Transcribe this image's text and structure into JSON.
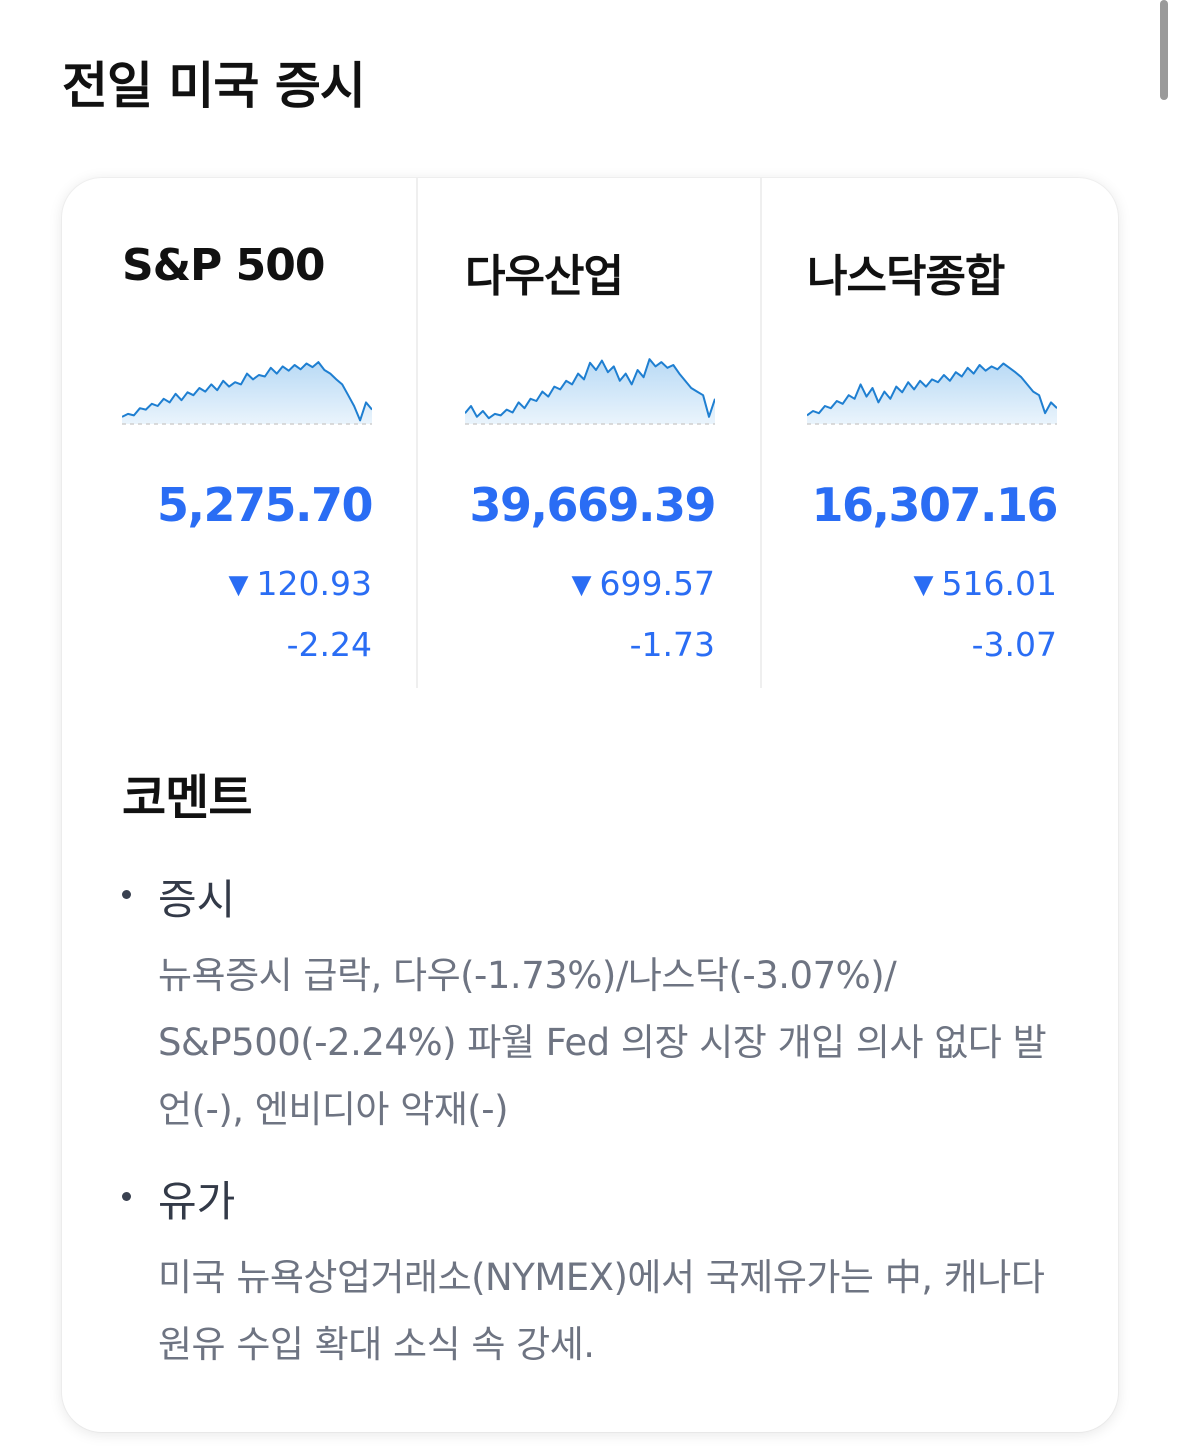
{
  "page": {
    "title": "전일 미국 증시"
  },
  "indices": [
    {
      "name": "S&P 500",
      "value": "5,275.70",
      "change": "120.93",
      "change_direction": "down",
      "change_arrow": "▼",
      "rate": "-2.24",
      "sparkline": [
        0.1,
        0.14,
        0.12,
        0.22,
        0.2,
        0.28,
        0.25,
        0.35,
        0.3,
        0.42,
        0.33,
        0.44,
        0.4,
        0.5,
        0.45,
        0.55,
        0.47,
        0.6,
        0.52,
        0.58,
        0.55,
        0.7,
        0.62,
        0.68,
        0.66,
        0.78,
        0.7,
        0.8,
        0.74,
        0.82,
        0.76,
        0.84,
        0.79,
        0.86,
        0.75,
        0.7,
        0.62,
        0.55,
        0.4,
        0.25,
        0.05,
        0.3,
        0.2
      ]
    },
    {
      "name": "다우산업",
      "value": "39,669.39",
      "change": "699.57",
      "change_direction": "down",
      "change_arrow": "▼",
      "rate": "-1.73",
      "sparkline": [
        0.15,
        0.25,
        0.1,
        0.18,
        0.08,
        0.14,
        0.12,
        0.2,
        0.16,
        0.3,
        0.22,
        0.35,
        0.32,
        0.45,
        0.38,
        0.52,
        0.48,
        0.6,
        0.55,
        0.7,
        0.62,
        0.85,
        0.75,
        0.88,
        0.72,
        0.8,
        0.6,
        0.7,
        0.55,
        0.75,
        0.65,
        0.9,
        0.8,
        0.86,
        0.78,
        0.82,
        0.7,
        0.6,
        0.5,
        0.45,
        0.4,
        0.1,
        0.35
      ]
    },
    {
      "name": "나스닥종합",
      "value": "16,307.16",
      "change": "516.01",
      "change_direction": "down",
      "change_arrow": "▼",
      "rate": "-3.07",
      "sparkline": [
        0.12,
        0.18,
        0.15,
        0.25,
        0.22,
        0.32,
        0.28,
        0.4,
        0.35,
        0.55,
        0.38,
        0.5,
        0.3,
        0.45,
        0.35,
        0.52,
        0.44,
        0.58,
        0.48,
        0.6,
        0.52,
        0.62,
        0.58,
        0.68,
        0.6,
        0.72,
        0.66,
        0.78,
        0.7,
        0.82,
        0.74,
        0.8,
        0.76,
        0.84,
        0.78,
        0.72,
        0.65,
        0.55,
        0.45,
        0.4,
        0.15,
        0.3,
        0.22
      ]
    }
  ],
  "comment": {
    "title": "코멘트",
    "items": [
      {
        "heading": "증시",
        "body": "뉴욕증시 급락, 다우(-1.73%)/나스닥(-3.07%)/ S&P500(-2.24%) 파월 Fed 의장 시장 개입 의사 없다 발언(-), 엔비디아 악재(-)"
      },
      {
        "heading": "유가",
        "body": "미국 뉴욕상업거래소(NYMEX)에서 국제유가는 中, 캐나다 원유 수입 확대 소식 속 강세."
      }
    ]
  },
  "colors": {
    "accent_blue": "#2a6df4",
    "sparkline_line": "#1f7fd1",
    "sparkline_fill_top": "#b9daf5",
    "sparkline_fill_bottom": "#eaf4fc"
  }
}
